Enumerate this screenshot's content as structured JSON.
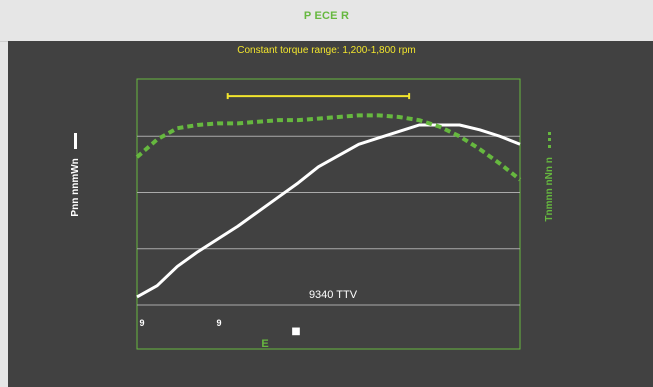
{
  "header": {
    "title": "P ECE R"
  },
  "chart_data": {
    "type": "line",
    "title": "Constant torque range: 1,200-1,800 rpm",
    "left_axis_label": "Pnn nnmWn",
    "right_axis_label": "Tnmnn nNn n",
    "annotation": "9340 TTV",
    "x_tick_labels": [
      "9",
      "9"
    ],
    "x_axis_label": "E",
    "legend_marker": "■",
    "x": [
      1,
      2,
      3,
      4,
      5,
      6,
      7,
      8,
      9,
      10,
      11,
      12,
      13,
      14,
      15,
      16,
      17,
      18,
      19,
      20
    ],
    "series": [
      {
        "style": "solid",
        "color": "#ffffff",
        "values": [
          0.05,
          0.12,
          0.24,
          0.33,
          0.41,
          0.49,
          0.58,
          0.67,
          0.76,
          0.86,
          0.93,
          1.0,
          1.04,
          1.08,
          1.12,
          1.12,
          1.12,
          1.09,
          1.05,
          1.0
        ]
      },
      {
        "style": "dashed",
        "color": "#66b83f",
        "values": [
          0.92,
          1.03,
          1.1,
          1.12,
          1.13,
          1.13,
          1.14,
          1.15,
          1.15,
          1.16,
          1.17,
          1.18,
          1.18,
          1.17,
          1.15,
          1.11,
          1.05,
          0.97,
          0.88,
          0.78
        ]
      }
    ],
    "torque_range_bar": {
      "from": 5.5,
      "to": 14.5,
      "color": "#f2e52d"
    },
    "ylim": [
      0,
      1.4
    ],
    "grid": true
  }
}
